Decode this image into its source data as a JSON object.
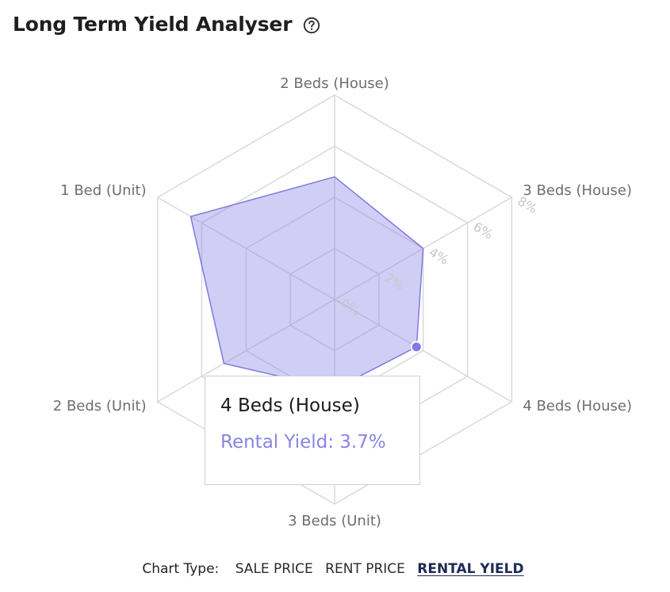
{
  "header": {
    "title": "Long Term Yield Analyser",
    "help_icon": "help-circle-icon"
  },
  "chart_data": {
    "type": "radar",
    "categories": [
      "2 Beds (House)",
      "3 Beds (House)",
      "4 Beds (House)",
      "3 Beds (Unit)",
      "2 Beds (Unit)",
      "1 Bed (Unit)"
    ],
    "series": [
      {
        "values": [
          4.8,
          4.0,
          3.7,
          3.5,
          5.0,
          6.5
        ]
      }
    ],
    "radial_ticks": [
      "0%",
      "2%",
      "4%",
      "6%",
      "8%"
    ],
    "rmax": 8,
    "grid": true,
    "colors": {
      "fill": "#8a84e6",
      "stroke": "#7f79e0",
      "grid": "#d9d9d9",
      "label": "#6e6e6e",
      "tick": "#c8c8c8"
    }
  },
  "tooltip": {
    "title": "4 Beds (House)",
    "value_text": "Rental Yield: 3.7%"
  },
  "footer": {
    "label": "Chart Type:",
    "options": [
      "SALE PRICE",
      "RENT PRICE",
      "RENTAL YIELD"
    ],
    "active": "RENTAL YIELD"
  }
}
